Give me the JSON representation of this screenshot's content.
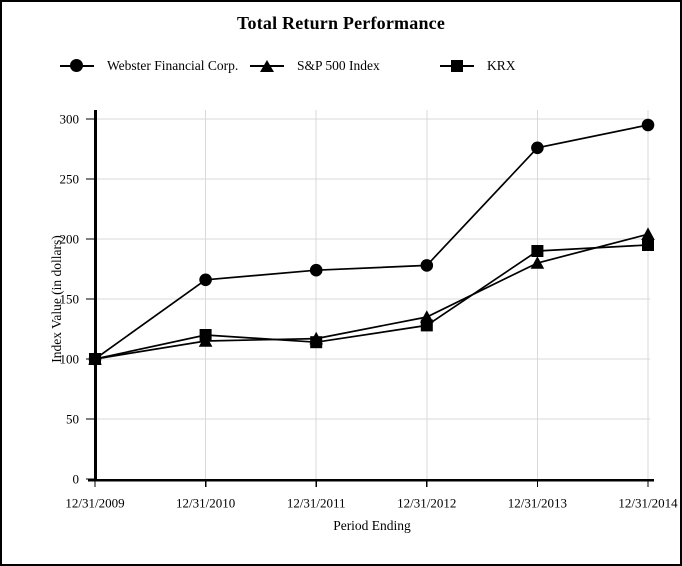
{
  "title": "Total Return Performance",
  "legend": {
    "items": [
      {
        "label": "Webster Financial Corp.",
        "marker": "circle"
      },
      {
        "label": "S&P 500 Index",
        "marker": "triangle"
      },
      {
        "label": "KRX",
        "marker": "square"
      }
    ]
  },
  "chart_data": {
    "type": "line",
    "title": "Total Return Performance",
    "xlabel": "Period Ending",
    "ylabel": "Index Value (in dollars)",
    "categories": [
      "12/31/2009",
      "12/31/2010",
      "12/31/2011",
      "12/31/2012",
      "12/31/2013",
      "12/31/2014"
    ],
    "series": [
      {
        "name": "Webster Financial Corp.",
        "marker": "circle",
        "values": [
          100,
          166,
          174,
          178,
          276,
          295
        ]
      },
      {
        "name": "S&P 500 Index",
        "marker": "triangle",
        "values": [
          100,
          115,
          117,
          135,
          180,
          204
        ]
      },
      {
        "name": "KRX",
        "marker": "square",
        "values": [
          100,
          120,
          114,
          128,
          190,
          195
        ]
      }
    ],
    "ylim": [
      0,
      300
    ],
    "yticks": [
      0,
      50,
      100,
      150,
      200,
      250,
      300
    ],
    "grid": true,
    "legend_position": "top-left",
    "colors": {
      "series": "#000000",
      "grid": "#d9d9d9",
      "background": "#ffffff",
      "text": "#000000"
    }
  }
}
